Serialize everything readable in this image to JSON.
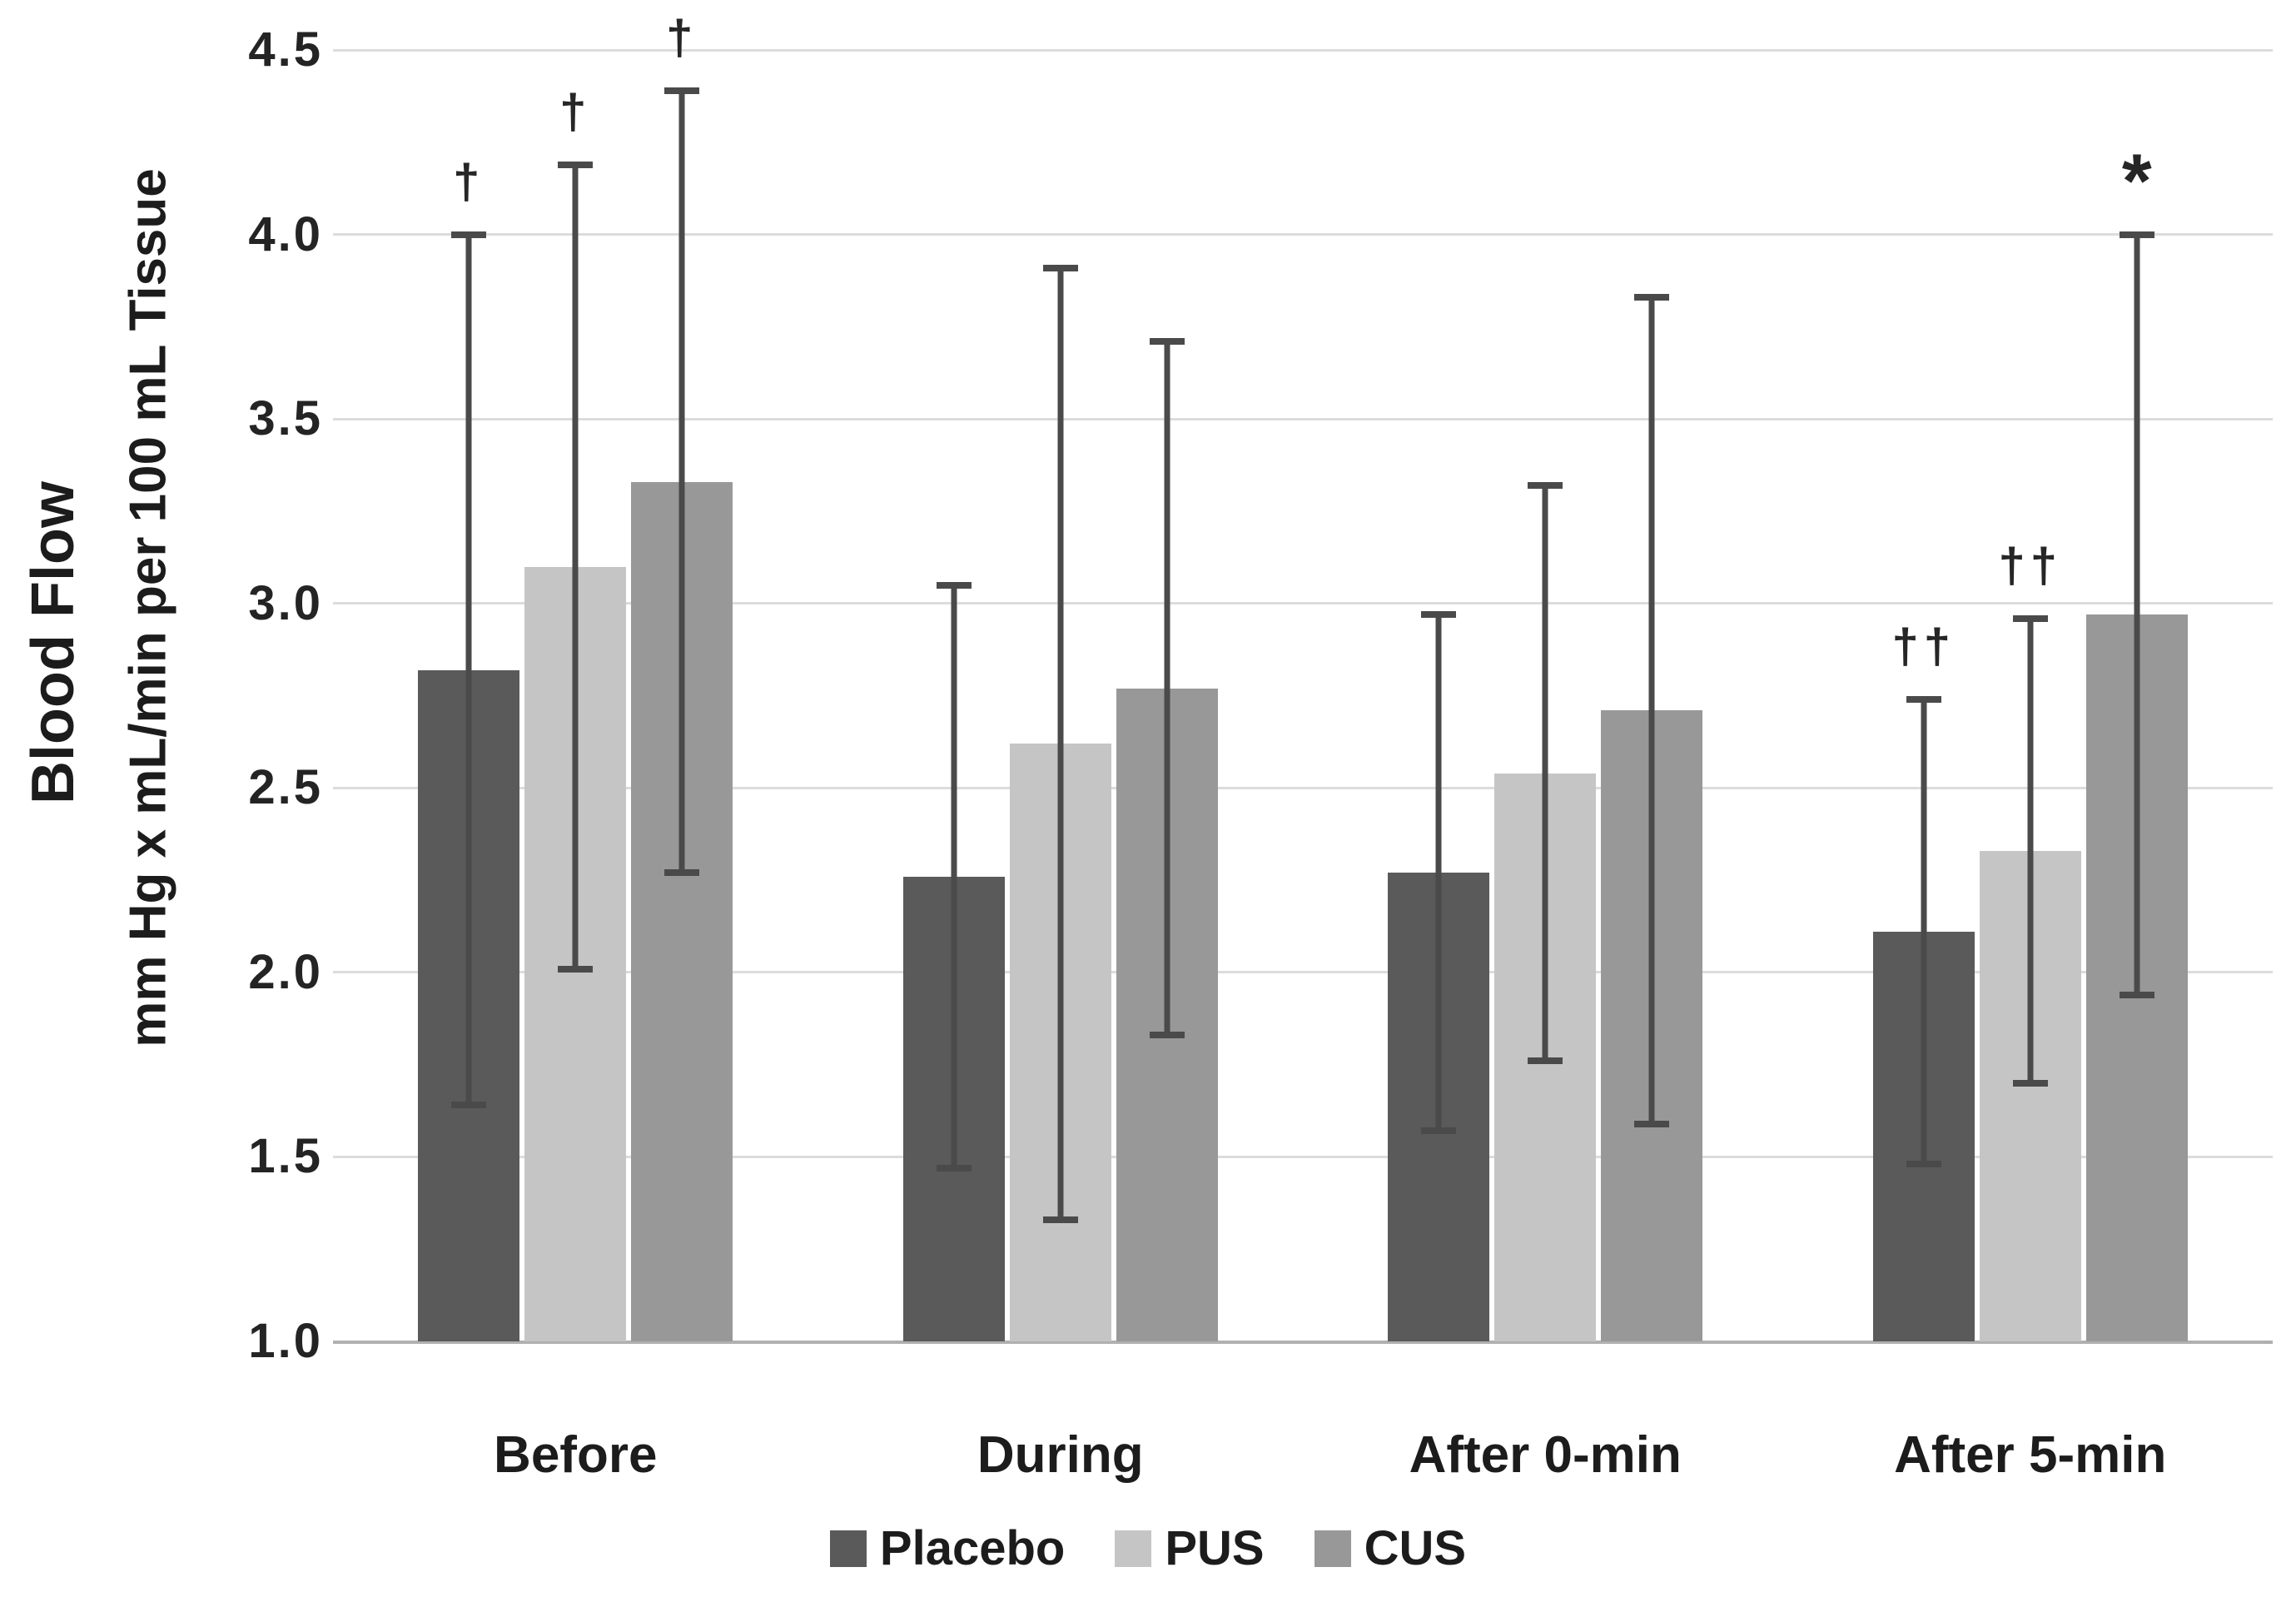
{
  "chart_data": {
    "type": "bar",
    "title": "",
    "categories": [
      "Before",
      "During",
      "After 0-min",
      "After 5-min"
    ],
    "series": [
      {
        "name": "Placebo",
        "color": "#5a5a5a",
        "values": [
          2.82,
          2.26,
          2.27,
          2.11
        ],
        "err_low": [
          1.64,
          1.47,
          1.57,
          1.48
        ],
        "err_high": [
          4.0,
          3.05,
          2.97,
          2.74
        ],
        "sig_markers": [
          "†",
          "",
          "",
          "††"
        ]
      },
      {
        "name": "PUS",
        "color": "#c5c5c5",
        "values": [
          3.1,
          2.62,
          2.54,
          2.33
        ],
        "err_low": [
          2.01,
          1.33,
          1.76,
          1.7
        ],
        "err_high": [
          4.19,
          3.91,
          3.32,
          2.96
        ],
        "sig_markers": [
          "†",
          "",
          "",
          "††"
        ]
      },
      {
        "name": "CUS",
        "color": "#989898",
        "values": [
          3.33,
          2.77,
          2.71,
          2.97
        ],
        "err_low": [
          2.27,
          1.83,
          1.59,
          1.94
        ],
        "err_high": [
          4.39,
          3.71,
          3.83,
          4.0
        ],
        "sig_markers": [
          "†",
          "",
          "",
          "*"
        ]
      }
    ],
    "xlabel": "",
    "ylabel_line1": "Blood Flow",
    "ylabel_line2": "mm Hg x mL/min per 100 mL Tissue",
    "yticks": [
      4.5,
      4.0,
      3.5,
      3.0,
      2.5,
      2.0,
      1.5,
      1.0
    ],
    "ylim": [
      1.0,
      4.6
    ],
    "grid": true,
    "error_bars": "symmetric whiskers with end caps, drawn over bars",
    "legend_position": "bottom",
    "colors": {
      "gridline": "#dcdcdc",
      "baseline": "#b0b0b0",
      "whisker": "#4a4a4a",
      "text": "#222222"
    }
  }
}
